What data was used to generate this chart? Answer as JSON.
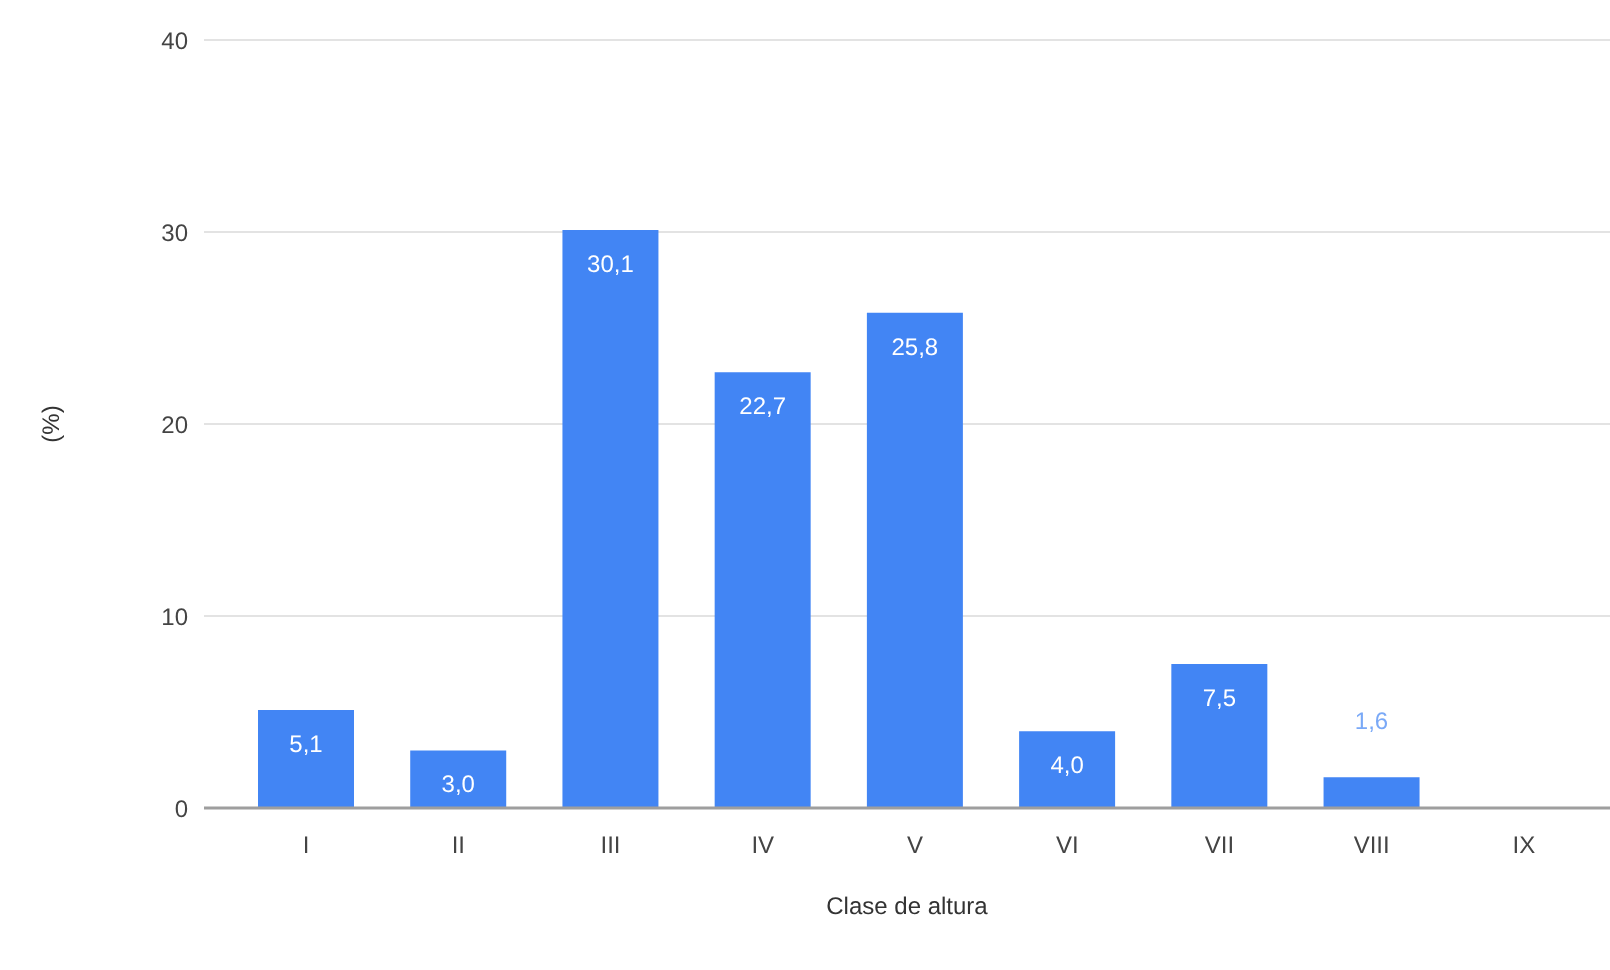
{
  "chart_data": {
    "type": "bar",
    "xlabel": "Clase de altura",
    "ylabel": "(%)",
    "categories": [
      "I",
      "II",
      "III",
      "IV",
      "V",
      "VI",
      "VII",
      "VIII",
      "IX"
    ],
    "values": [
      5.1,
      3.0,
      30.1,
      22.7,
      25.8,
      4.0,
      7.5,
      1.6,
      null
    ],
    "value_labels": [
      "5,1",
      "3,0",
      "30,1",
      "22,7",
      "25,8",
      "4,0",
      "7,5",
      "1,6",
      null
    ],
    "color": "#4285f4",
    "ylim": [
      0,
      40
    ],
    "yticks": [
      0,
      10,
      20,
      30,
      40
    ],
    "grid": "y"
  }
}
